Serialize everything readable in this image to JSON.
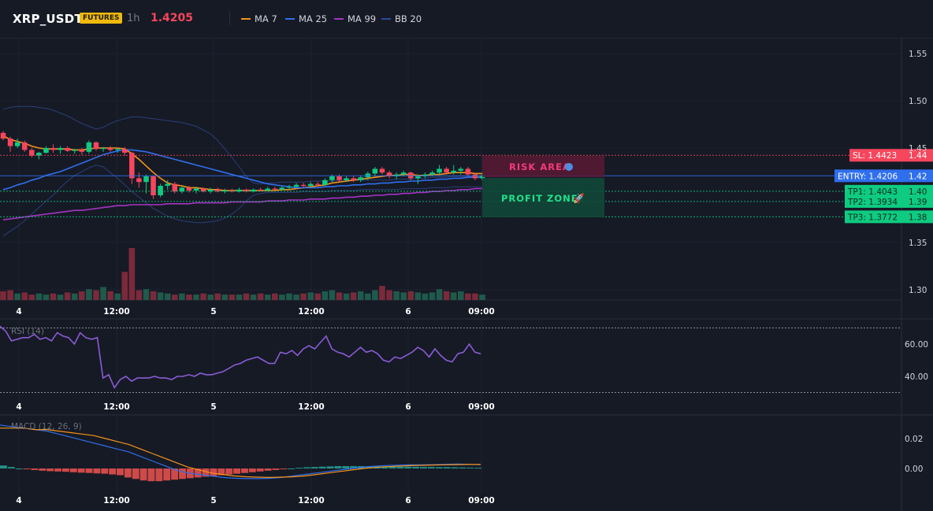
{
  "header": {
    "symbol": "XRP_USDT",
    "badge": "FUTURES",
    "timeframe": "1h",
    "price": "1.4205",
    "legend": [
      {
        "label": "MA 7",
        "color": "#f7931a"
      },
      {
        "label": "MA 25",
        "color": "#2f6fed"
      },
      {
        "label": "MA 99",
        "color": "#a335c2"
      },
      {
        "label": "BB 20",
        "color": "#2a4a9a"
      }
    ]
  },
  "colors": {
    "up": "#0ecb81",
    "down": "#f6465d",
    "bg": "#161a25",
    "grid": "#1f2331"
  },
  "chart_data": [
    {
      "type": "candlestick",
      "title": "",
      "xlabel": "",
      "ylabel": "",
      "x_ticks": [
        "4",
        "12:00",
        "5",
        "12:00",
        "6",
        "09:00"
      ],
      "y_ticks": [
        "1.55",
        "1.50",
        "1.45",
        "1.35",
        "1.30"
      ],
      "ylim": [
        1.29,
        1.56
      ],
      "ohlc": [
        [
          1.466,
          1.468,
          1.458,
          1.46
        ],
        [
          1.46,
          1.462,
          1.446,
          1.452
        ],
        [
          1.452,
          1.46,
          1.45,
          1.456
        ],
        [
          1.456,
          1.458,
          1.446,
          1.448
        ],
        [
          1.448,
          1.45,
          1.44,
          1.442
        ],
        [
          1.442,
          1.446,
          1.438,
          1.445
        ],
        [
          1.445,
          1.452,
          1.444,
          1.45
        ],
        [
          1.45,
          1.454,
          1.445,
          1.448
        ],
        [
          1.448,
          1.452,
          1.444,
          1.45
        ],
        [
          1.45,
          1.452,
          1.446,
          1.447
        ],
        [
          1.447,
          1.449,
          1.444,
          1.448
        ],
        [
          1.448,
          1.45,
          1.443,
          1.446
        ],
        [
          1.446,
          1.458,
          1.444,
          1.456
        ],
        [
          1.456,
          1.457,
          1.447,
          1.449
        ],
        [
          1.449,
          1.451,
          1.446,
          1.45
        ],
        [
          1.45,
          1.452,
          1.446,
          1.448
        ],
        [
          1.448,
          1.45,
          1.445,
          1.449
        ],
        [
          1.449,
          1.451,
          1.442,
          1.445
        ],
        [
          1.445,
          1.446,
          1.412,
          1.418
        ],
        [
          1.418,
          1.424,
          1.408,
          1.414
        ],
        [
          1.414,
          1.422,
          1.402,
          1.42
        ],
        [
          1.42,
          1.421,
          1.396,
          1.4
        ],
        [
          1.4,
          1.412,
          1.398,
          1.41
        ],
        [
          1.41,
          1.416,
          1.406,
          1.412
        ],
        [
          1.412,
          1.414,
          1.402,
          1.404
        ],
        [
          1.404,
          1.41,
          1.402,
          1.408
        ],
        [
          1.408,
          1.41,
          1.403,
          1.405
        ],
        [
          1.405,
          1.409,
          1.402,
          1.407
        ],
        [
          1.407,
          1.408,
          1.403,
          1.404
        ],
        [
          1.404,
          1.408,
          1.402,
          1.406
        ],
        [
          1.406,
          1.408,
          1.403,
          1.404
        ],
        [
          1.404,
          1.407,
          1.402,
          1.405
        ],
        [
          1.405,
          1.407,
          1.403,
          1.404
        ],
        [
          1.404,
          1.408,
          1.403,
          1.406
        ],
        [
          1.406,
          1.407,
          1.403,
          1.404
        ],
        [
          1.404,
          1.407,
          1.403,
          1.406
        ],
        [
          1.406,
          1.408,
          1.404,
          1.405
        ],
        [
          1.405,
          1.409,
          1.404,
          1.407
        ],
        [
          1.407,
          1.409,
          1.405,
          1.406
        ],
        [
          1.406,
          1.41,
          1.405,
          1.408
        ],
        [
          1.408,
          1.411,
          1.406,
          1.409
        ],
        [
          1.409,
          1.413,
          1.408,
          1.411
        ],
        [
          1.411,
          1.413,
          1.408,
          1.41
        ],
        [
          1.41,
          1.414,
          1.408,
          1.412
        ],
        [
          1.412,
          1.414,
          1.41,
          1.411
        ],
        [
          1.411,
          1.418,
          1.41,
          1.416
        ],
        [
          1.416,
          1.422,
          1.414,
          1.42
        ],
        [
          1.42,
          1.422,
          1.414,
          1.416
        ],
        [
          1.416,
          1.42,
          1.414,
          1.418
        ],
        [
          1.418,
          1.421,
          1.414,
          1.416
        ],
        [
          1.416,
          1.421,
          1.414,
          1.419
        ],
        [
          1.419,
          1.425,
          1.416,
          1.423
        ],
        [
          1.423,
          1.43,
          1.42,
          1.428
        ],
        [
          1.428,
          1.43,
          1.422,
          1.424
        ],
        [
          1.424,
          1.426,
          1.418,
          1.42
        ],
        [
          1.42,
          1.424,
          1.417,
          1.422
        ],
        [
          1.422,
          1.426,
          1.42,
          1.424
        ],
        [
          1.424,
          1.425,
          1.416,
          1.418
        ],
        [
          1.418,
          1.422,
          1.412,
          1.42
        ],
        [
          1.42,
          1.424,
          1.418,
          1.422
        ],
        [
          1.422,
          1.426,
          1.42,
          1.424
        ],
        [
          1.424,
          1.432,
          1.422,
          1.428
        ],
        [
          1.428,
          1.43,
          1.422,
          1.424
        ],
        [
          1.424,
          1.432,
          1.422,
          1.426
        ],
        [
          1.426,
          1.43,
          1.422,
          1.428
        ],
        [
          1.428,
          1.43,
          1.42,
          1.422
        ],
        [
          1.422,
          1.424,
          1.416,
          1.418
        ],
        [
          1.418,
          1.424,
          1.416,
          1.421
        ]
      ],
      "volume": [
        8,
        9,
        6,
        7,
        5,
        6,
        5,
        6,
        5,
        7,
        6,
        8,
        10,
        9,
        12,
        8,
        6,
        26,
        48,
        9,
        10,
        8,
        7,
        6,
        5,
        6,
        5,
        5,
        6,
        5,
        6,
        5,
        5,
        5,
        6,
        5,
        6,
        5,
        6,
        5,
        6,
        5,
        6,
        7,
        6,
        8,
        9,
        7,
        6,
        7,
        8,
        6,
        9,
        13,
        9,
        8,
        7,
        8,
        7,
        6,
        7,
        10,
        8,
        7,
        8,
        6,
        6,
        5
      ],
      "ma_series": [
        {
          "name": "MA 7",
          "values": [
            1.463,
            1.459,
            1.457,
            1.455,
            1.452,
            1.45,
            1.449,
            1.449,
            1.449,
            1.449,
            1.448,
            1.448,
            1.449,
            1.45,
            1.45,
            1.45,
            1.45,
            1.449,
            1.444,
            1.438,
            1.431,
            1.424,
            1.418,
            1.413,
            1.411,
            1.41,
            1.408,
            1.408,
            1.407,
            1.406,
            1.406,
            1.405,
            1.405,
            1.405,
            1.405,
            1.405,
            1.405,
            1.405,
            1.405,
            1.406,
            1.406,
            1.407,
            1.408,
            1.409,
            1.41,
            1.411,
            1.413,
            1.414,
            1.415,
            1.416,
            1.417,
            1.418,
            1.419,
            1.42,
            1.421,
            1.421,
            1.422,
            1.422,
            1.421,
            1.421,
            1.422,
            1.422,
            1.423,
            1.424,
            1.424,
            1.424,
            1.423,
            1.423
          ]
        },
        {
          "name": "MA 25",
          "values": [
            1.406,
            1.408,
            1.411,
            1.413,
            1.416,
            1.418,
            1.421,
            1.423,
            1.425,
            1.428,
            1.431,
            1.434,
            1.437,
            1.44,
            1.443,
            1.445,
            1.447,
            1.448,
            1.448,
            1.447,
            1.446,
            1.444,
            1.442,
            1.44,
            1.438,
            1.436,
            1.434,
            1.432,
            1.43,
            1.428,
            1.426,
            1.424,
            1.422,
            1.42,
            1.418,
            1.416,
            1.414,
            1.412,
            1.411,
            1.41,
            1.409,
            1.408,
            1.408,
            1.408,
            1.408,
            1.409,
            1.409,
            1.41,
            1.41,
            1.411,
            1.411,
            1.412,
            1.412,
            1.413,
            1.413,
            1.414,
            1.414,
            1.415,
            1.415,
            1.416,
            1.416,
            1.417,
            1.417,
            1.418,
            1.418,
            1.419,
            1.419,
            1.419
          ]
        },
        {
          "name": "MA 99",
          "values": [
            1.374,
            1.375,
            1.376,
            1.377,
            1.378,
            1.379,
            1.38,
            1.381,
            1.382,
            1.383,
            1.384,
            1.384,
            1.385,
            1.386,
            1.387,
            1.388,
            1.389,
            1.389,
            1.39,
            1.39,
            1.39,
            1.39,
            1.39,
            1.391,
            1.391,
            1.391,
            1.391,
            1.392,
            1.392,
            1.392,
            1.392,
            1.392,
            1.393,
            1.393,
            1.393,
            1.393,
            1.393,
            1.394,
            1.394,
            1.394,
            1.395,
            1.395,
            1.395,
            1.396,
            1.396,
            1.396,
            1.397,
            1.397,
            1.398,
            1.398,
            1.399,
            1.399,
            1.4,
            1.4,
            1.401,
            1.401,
            1.402,
            1.402,
            1.403,
            1.403,
            1.404,
            1.404,
            1.405,
            1.405,
            1.406,
            1.406,
            1.407,
            1.407
          ]
        },
        {
          "name": "BB 20 upper",
          "values": [
            1.491,
            1.493,
            1.494,
            1.494,
            1.494,
            1.493,
            1.492,
            1.49,
            1.487,
            1.484,
            1.48,
            1.476,
            1.473,
            1.47,
            1.472,
            1.476,
            1.479,
            1.481,
            1.483,
            1.483,
            1.482,
            1.481,
            1.48,
            1.479,
            1.478,
            1.477,
            1.475,
            1.473,
            1.469,
            1.465,
            1.458,
            1.449,
            1.44,
            1.43,
            1.42,
            1.413,
            1.412,
            1.413,
            1.413,
            1.414,
            1.414,
            1.414,
            1.414,
            1.415,
            1.415,
            1.415,
            1.415,
            1.416,
            1.416,
            1.416,
            1.416,
            1.416,
            1.416,
            1.416,
            1.416,
            1.417,
            1.417,
            1.417,
            1.418,
            1.418,
            1.419,
            1.419,
            1.419,
            1.42,
            1.42,
            1.42,
            1.42,
            1.42
          ]
        },
        {
          "name": "BB 20 lower",
          "values": [
            1.357,
            1.362,
            1.367,
            1.373,
            1.38,
            1.387,
            1.394,
            1.4,
            1.408,
            1.415,
            1.421,
            1.425,
            1.429,
            1.432,
            1.43,
            1.424,
            1.418,
            1.411,
            1.404,
            1.398,
            1.392,
            1.386,
            1.382,
            1.378,
            1.375,
            1.373,
            1.372,
            1.371,
            1.371,
            1.372,
            1.373,
            1.376,
            1.38,
            1.386,
            1.394,
            1.4,
            1.402,
            1.403,
            1.403,
            1.403,
            1.403,
            1.403,
            1.404,
            1.404,
            1.404,
            1.404,
            1.405,
            1.405,
            1.405,
            1.405,
            1.406,
            1.406,
            1.406,
            1.406,
            1.406,
            1.406,
            1.407,
            1.407,
            1.407,
            1.407,
            1.408,
            1.408,
            1.408,
            1.409,
            1.409,
            1.409,
            1.409,
            1.409
          ]
        }
      ],
      "levels": [
        {
          "name": "SL",
          "label": "SL: 1.4423",
          "axis": "1.44",
          "value": 1.4423,
          "color": "#f6465d"
        },
        {
          "name": "ENTRY",
          "label": "ENTRY: 1.4206",
          "axis": "1.42",
          "value": 1.4206,
          "color": "#2f6fed"
        },
        {
          "name": "TP1",
          "label": "TP1: 1.4043",
          "axis": "1.40",
          "value": 1.4043,
          "color": "#0ecb81"
        },
        {
          "name": "TP2",
          "label": "TP2: 1.3934",
          "axis": "1.39",
          "value": 1.3934,
          "color": "#0ecb81"
        },
        {
          "name": "TP3",
          "label": "TP3: 1.3772",
          "axis": "1.38",
          "value": 1.3772,
          "color": "#0ecb81"
        }
      ],
      "zones": {
        "risk": "RISK AREA",
        "profit": "PROFIT ZONE"
      }
    },
    {
      "type": "line",
      "title": "RSI (14)",
      "x_ticks": [
        "4",
        "12:00",
        "5",
        "12:00",
        "6",
        "09:00"
      ],
      "y_ticks": [
        "60.00",
        "40.00"
      ],
      "ylim": [
        26,
        74
      ],
      "overbought": 70,
      "oversold": 30,
      "values": [
        71,
        68,
        62,
        63,
        64,
        64,
        66,
        63,
        64,
        62,
        67,
        65,
        64,
        60,
        67,
        64,
        63,
        64,
        39,
        41,
        33,
        38,
        40,
        37,
        39,
        39,
        39,
        40,
        39,
        39,
        38,
        40,
        40,
        41,
        40,
        42,
        41,
        41,
        42,
        43,
        45,
        47,
        48,
        50,
        51,
        52,
        50,
        48,
        48,
        55,
        54,
        56,
        53,
        57,
        59,
        57,
        61,
        65,
        57,
        55,
        54,
        52,
        55,
        58,
        55,
        56,
        54,
        50,
        49,
        52,
        51,
        53,
        55,
        58,
        56,
        52,
        57,
        53,
        50,
        49,
        54,
        55,
        60,
        55,
        54
      ]
    },
    {
      "type": "bar",
      "title": "MACD (12, 26, 9)",
      "x_ticks": [
        "4",
        "12:00",
        "5",
        "12:00",
        "6",
        "09:00"
      ],
      "y_ticks": [
        "0.02",
        "0.00"
      ],
      "ylim": [
        -0.01,
        0.03
      ],
      "histogram": [
        0.002,
        0.001,
        0.0,
        -0.0005,
        -0.001,
        -0.0015,
        -0.0018,
        -0.002,
        -0.0022,
        -0.0025,
        -0.0028,
        -0.003,
        -0.0033,
        -0.0035,
        -0.004,
        -0.0045,
        -0.006,
        -0.007,
        -0.008,
        -0.0085,
        -0.0085,
        -0.008,
        -0.0075,
        -0.007,
        -0.0065,
        -0.006,
        -0.0055,
        -0.005,
        -0.0045,
        -0.004,
        -0.0035,
        -0.003,
        -0.0025,
        -0.002,
        -0.0015,
        -0.001,
        -0.0005,
        0.0,
        0.0005,
        0.0008,
        0.001,
        0.0012,
        0.0014,
        0.0016,
        0.0016,
        0.0016,
        0.0016,
        0.0015,
        0.0014,
        0.0014,
        0.0013,
        0.0012,
        0.0012,
        0.0011,
        0.001,
        0.001,
        0.0009,
        0.0009,
        0.0008,
        0.0007,
        0.0006,
        0.0005
      ],
      "series": [
        {
          "name": "MACD",
          "values": [
            0.029,
            0.028,
            0.027,
            0.026,
            0.025,
            0.023,
            0.021,
            0.019,
            0.017,
            0.015,
            0.013,
            0.011,
            0.008,
            0.005,
            0.002,
            -0.001,
            -0.003,
            -0.004,
            -0.005,
            -0.006,
            -0.0065,
            -0.0068,
            -0.0068,
            -0.0066,
            -0.006,
            -0.005,
            -0.004,
            -0.003,
            -0.002,
            -0.001,
            0.0,
            0.001,
            0.0015,
            0.002,
            0.0022,
            0.0024,
            0.0025,
            0.0026,
            0.0028,
            0.003,
            0.0028,
            0.0025
          ]
        },
        {
          "name": "Signal",
          "values": [
            0.027,
            0.027,
            0.027,
            0.026,
            0.026,
            0.025,
            0.024,
            0.023,
            0.022,
            0.02,
            0.018,
            0.016,
            0.013,
            0.01,
            0.007,
            0.004,
            0.001,
            -0.001,
            -0.003,
            -0.004,
            -0.005,
            -0.0055,
            -0.0058,
            -0.006,
            -0.0058,
            -0.0055,
            -0.005,
            -0.004,
            -0.003,
            -0.002,
            -0.001,
            0.0,
            0.0007,
            0.0012,
            0.0016,
            0.0019,
            0.0021,
            0.0023,
            0.0025,
            0.0026,
            0.0027,
            0.0027
          ]
        }
      ]
    }
  ]
}
